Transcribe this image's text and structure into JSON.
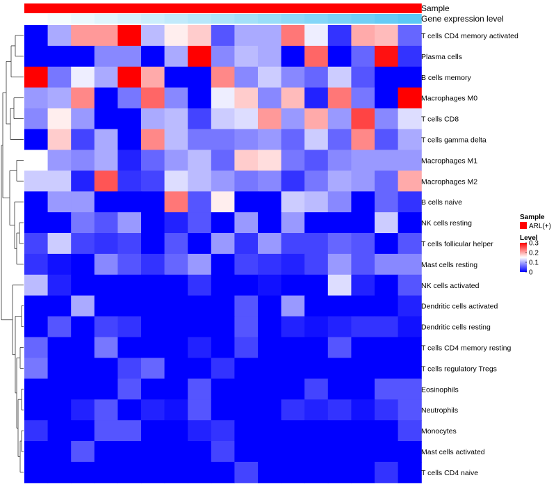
{
  "chart_data": {
    "type": "heatmap",
    "annotation_tracks": [
      {
        "name": "Sample",
        "color": "#ff0000"
      },
      {
        "name": "Gene expression level",
        "gradient": [
          "#ffffff",
          "#5bc8f5"
        ]
      }
    ],
    "legend": {
      "sample_title": "Sample",
      "sample_entry": "ARL(+)",
      "sample_color": "#ff0000",
      "level_title": "Level",
      "level_ticks": [
        "0.3",
        "0.2",
        "0.1",
        "0"
      ],
      "level_tick_values": [
        0.3,
        0.2,
        0.1,
        0
      ],
      "color_scale": {
        "min": 0,
        "mid": 0.15,
        "max": 0.3,
        "low": "#0000ff",
        "midcolor": "#ffffff",
        "high": "#ff0000"
      }
    },
    "rows": [
      "T cells CD4 memory activated",
      "Plasma cells",
      "B cells memory",
      "Macrophages M0",
      "T cells CD8",
      "T cells gamma delta",
      "Macrophages M1",
      "Macrophages M2",
      "B cells naive",
      "NK cells resting",
      "T cells follicular helper",
      "Mast cells resting",
      "NK cells activated",
      "Dendritic cells activated",
      "Dendritic cells resting",
      "T cells CD4 memory resting",
      "T cells regulatory  Tregs",
      "Eosinophils",
      "Neutrophils",
      "Monocytes",
      "Mast cells activated",
      "T cells CD4 naive"
    ],
    "n_columns": 17,
    "values": [
      [
        0.0,
        0.1,
        0.21,
        0.21,
        0.3,
        0.11,
        0.16,
        0.18,
        0.05,
        0.1,
        0.1,
        0.23,
        0.14,
        0.03,
        0.2,
        0.19,
        0.06
      ],
      [
        0.0,
        0.0,
        0.0,
        0.08,
        0.08,
        0.0,
        0.1,
        0.3,
        0.08,
        0.11,
        0.1,
        0.0,
        0.24,
        0.0,
        0.06,
        0.29,
        0.03
      ],
      [
        0.3,
        0.07,
        0.14,
        0.1,
        0.3,
        0.2,
        0.0,
        0.0,
        0.22,
        0.08,
        0.12,
        0.08,
        0.06,
        0.12,
        0.05,
        0.0,
        0.0
      ],
      [
        0.09,
        0.1,
        0.22,
        0.0,
        0.07,
        0.24,
        0.08,
        0.0,
        0.14,
        0.18,
        0.08,
        0.19,
        0.02,
        0.23,
        0.07,
        0.0,
        0.3
      ],
      [
        0.08,
        0.16,
        0.09,
        0.0,
        0.0,
        0.1,
        0.11,
        0.04,
        0.12,
        0.13,
        0.21,
        0.09,
        0.2,
        0.09,
        0.26,
        0.08,
        0.13
      ],
      [
        0.0,
        0.18,
        0.04,
        0.1,
        0.0,
        0.22,
        0.11,
        0.07,
        0.07,
        0.08,
        0.09,
        0.06,
        0.12,
        0.06,
        0.22,
        0.05,
        0.1
      ],
      [
        0.15,
        0.09,
        0.08,
        0.1,
        0.02,
        0.06,
        0.09,
        0.11,
        0.06,
        0.18,
        0.17,
        0.07,
        0.05,
        0.08,
        0.09,
        0.09,
        0.09
      ],
      [
        0.12,
        0.12,
        0.02,
        0.25,
        0.03,
        0.04,
        0.13,
        0.11,
        0.09,
        0.07,
        0.08,
        0.03,
        0.07,
        0.1,
        0.09,
        0.06,
        0.2
      ],
      [
        0.0,
        0.09,
        0.09,
        0.0,
        0.0,
        0.0,
        0.23,
        0.05,
        0.16,
        0.0,
        0.0,
        0.12,
        0.11,
        0.08,
        0.0,
        0.06,
        0.03
      ],
      [
        0.0,
        0.0,
        0.07,
        0.05,
        0.09,
        0.0,
        0.02,
        0.05,
        0.0,
        0.09,
        0.0,
        0.09,
        0.0,
        0.0,
        0.0,
        0.12,
        0.0
      ],
      [
        0.04,
        0.12,
        0.04,
        0.03,
        0.04,
        0.0,
        0.05,
        0.0,
        0.09,
        0.03,
        0.09,
        0.04,
        0.04,
        0.06,
        0.05,
        0.0,
        0.05
      ],
      [
        0.03,
        0.01,
        0.0,
        0.08,
        0.05,
        0.03,
        0.06,
        0.09,
        0.0,
        0.04,
        0.03,
        0.02,
        0.04,
        0.09,
        0.05,
        0.08,
        0.08
      ],
      [
        0.11,
        0.02,
        0.0,
        0.0,
        0.0,
        0.0,
        0.0,
        0.03,
        0.0,
        0.0,
        0.01,
        0.0,
        0.0,
        0.13,
        0.02,
        0.0,
        0.05
      ],
      [
        0.0,
        0.0,
        0.1,
        0.0,
        0.0,
        0.0,
        0.0,
        0.0,
        0.0,
        0.05,
        0.0,
        0.09,
        0.0,
        0.0,
        0.0,
        0.0,
        0.02
      ],
      [
        0.0,
        0.05,
        0.0,
        0.04,
        0.03,
        0.0,
        0.0,
        0.0,
        0.0,
        0.05,
        0.0,
        0.02,
        0.01,
        0.02,
        0.03,
        0.03,
        0.01
      ],
      [
        0.06,
        0.0,
        0.0,
        0.07,
        0.0,
        0.0,
        0.0,
        0.02,
        0.0,
        0.04,
        0.0,
        0.0,
        0.0,
        0.05,
        0.0,
        0.0,
        0.0
      ],
      [
        0.07,
        0.0,
        0.0,
        0.0,
        0.04,
        0.06,
        0.0,
        0.0,
        0.03,
        0.0,
        0.0,
        0.0,
        0.0,
        0.0,
        0.0,
        0.0,
        0.0
      ],
      [
        0.0,
        0.0,
        0.0,
        0.0,
        0.05,
        0.0,
        0.0,
        0.05,
        0.0,
        0.0,
        0.0,
        0.0,
        0.04,
        0.0,
        0.0,
        0.05,
        0.05
      ],
      [
        0.0,
        0.0,
        0.02,
        0.05,
        0.0,
        0.02,
        0.01,
        0.05,
        0.0,
        0.0,
        0.0,
        0.03,
        0.02,
        0.03,
        0.01,
        0.03,
        0.05
      ],
      [
        0.03,
        0.0,
        0.0,
        0.05,
        0.05,
        0.0,
        0.0,
        0.02,
        0.03,
        0.0,
        0.0,
        0.0,
        0.0,
        0.0,
        0.0,
        0.0,
        0.04
      ],
      [
        0.0,
        0.0,
        0.05,
        0.0,
        0.0,
        0.0,
        0.0,
        0.0,
        0.04,
        0.0,
        0.0,
        0.0,
        0.0,
        0.0,
        0.0,
        0.0,
        0.0
      ],
      [
        0.0,
        0.0,
        0.0,
        0.0,
        0.0,
        0.0,
        0.0,
        0.0,
        0.0,
        0.04,
        0.0,
        0.0,
        0.0,
        0.0,
        0.0,
        0.03,
        0.0
      ]
    ]
  }
}
